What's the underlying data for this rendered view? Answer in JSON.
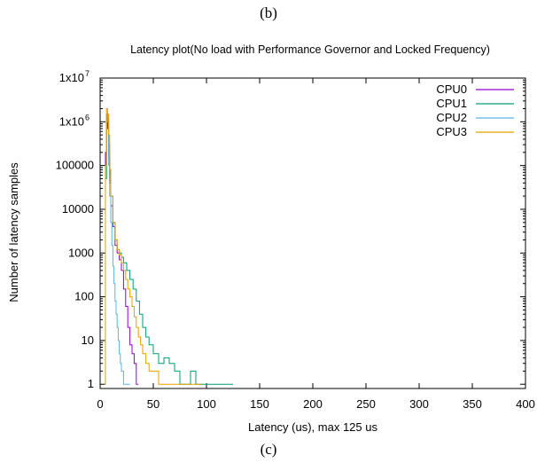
{
  "captions": {
    "top": "(b)",
    "bottom": "(c)"
  },
  "chart_data": {
    "type": "line",
    "title": "Latency plot(No load with Performance Governor and Locked Frequency)",
    "xlabel": "Latency (us), max 125 us",
    "ylabel": "Number of latency samples",
    "xlim": [
      0,
      400
    ],
    "ylim": [
      0.8,
      10000000
    ],
    "yscale": "log",
    "x_ticks": [
      0,
      50,
      100,
      150,
      200,
      250,
      300,
      350,
      400
    ],
    "y_ticks": [
      {
        "value": 1,
        "label": "1"
      },
      {
        "value": 10,
        "label": "10"
      },
      {
        "value": 100,
        "label": "100"
      },
      {
        "value": 1000,
        "label": "1000"
      },
      {
        "value": 10000,
        "label": "10000"
      },
      {
        "value": 100000,
        "label": "100000"
      },
      {
        "value": 1000000,
        "label": "1x10",
        "exp": "6"
      },
      {
        "value": 10000000,
        "label": "1x10",
        "exp": "7"
      }
    ],
    "legend_position": "top-right",
    "grid": false,
    "series": [
      {
        "name": "CPU0",
        "color": "#9400d3",
        "x": [
          4,
          5,
          6,
          7,
          8,
          9,
          10,
          12,
          14,
          16,
          18,
          20,
          22,
          24,
          26,
          28,
          30,
          32,
          34,
          36
        ],
        "y": [
          1,
          200000,
          1500000,
          700000,
          150000,
          40000,
          12000,
          4000,
          1500,
          1000,
          700,
          400,
          150,
          60,
          20,
          8,
          5,
          3,
          1,
          1
        ]
      },
      {
        "name": "CPU1",
        "color": "#009e73",
        "x": [
          4,
          5,
          6,
          7,
          8,
          9,
          10,
          12,
          14,
          16,
          18,
          20,
          22,
          25,
          28,
          31,
          34,
          37,
          40,
          43,
          46,
          50,
          55,
          60,
          65,
          70,
          75,
          80,
          85,
          90,
          95,
          100,
          110,
          120,
          125
        ],
        "y": [
          1,
          50000,
          1000000,
          1200000,
          300000,
          60000,
          20000,
          5000,
          2000,
          1200,
          1000,
          800,
          600,
          400,
          250,
          150,
          80,
          40,
          20,
          12,
          8,
          5,
          3,
          4,
          3,
          2,
          1,
          1,
          2,
          1,
          1,
          1,
          1,
          1,
          1
        ]
      },
      {
        "name": "CPU2",
        "color": "#56b4e9",
        "x": [
          4,
          5,
          6,
          7,
          8,
          9,
          10,
          11,
          12,
          13,
          14,
          15,
          16,
          17,
          18,
          19,
          20,
          21,
          22,
          24,
          26,
          28
        ],
        "y": [
          1,
          100000,
          1500000,
          1000000,
          100000,
          20000,
          5000,
          1500,
          500,
          200,
          80,
          40,
          20,
          10,
          5,
          3,
          2,
          2,
          1,
          1,
          1,
          1
        ]
      },
      {
        "name": "CPU3",
        "color": "#e69f00",
        "x": [
          4,
          5,
          6,
          7,
          8,
          9,
          10,
          12,
          14,
          16,
          18,
          20,
          22,
          24,
          26,
          28,
          30,
          32,
          34,
          36,
          38,
          40,
          43,
          46,
          50,
          55,
          60,
          65,
          70,
          75,
          80,
          90,
          95
        ],
        "y": [
          1,
          100000,
          2000000,
          1500000,
          500000,
          80000,
          20000,
          5000,
          2000,
          1200,
          900,
          600,
          400,
          250,
          150,
          100,
          60,
          35,
          20,
          12,
          8,
          5,
          3,
          2,
          2,
          1,
          1,
          1,
          1,
          1,
          1,
          1,
          1
        ]
      }
    ]
  }
}
